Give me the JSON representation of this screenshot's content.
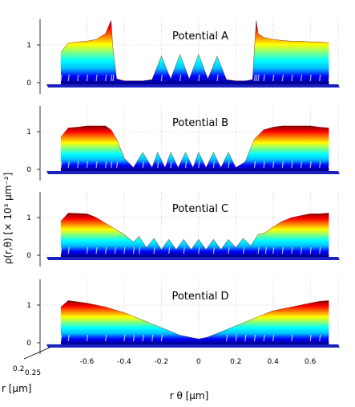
{
  "figure": {
    "ylabel": "ρ(r,θ) [× 10³ μm⁻²]",
    "xlabel": "r θ [μm]",
    "depth_label": "r [μm]",
    "depth_ticks": [
      "0.2",
      "0.25"
    ]
  },
  "colors": {
    "colormap": [
      "#000080",
      "#0000ff",
      "#00bfff",
      "#00ffff",
      "#80ff80",
      "#ffff00",
      "#ff8000",
      "#ff0000",
      "#800000"
    ],
    "grid": "#b0b0b0"
  },
  "chart_data": [
    {
      "type": "area",
      "title": "Potential A",
      "xlim": [
        -0.8,
        0.75
      ],
      "ylim": [
        0,
        1.7
      ],
      "yticks": [
        "0",
        "1"
      ],
      "xticks": [
        "-0.6",
        "-0.4",
        "-0.2",
        "0",
        "0.2",
        "0.4",
        "0.6"
      ],
      "x": [
        -0.74,
        -0.7,
        -0.65,
        -0.6,
        -0.55,
        -0.5,
        -0.47,
        -0.46,
        -0.44,
        -0.4,
        -0.35,
        -0.3,
        -0.25,
        -0.2,
        -0.15,
        -0.1,
        -0.05,
        0,
        0.05,
        0.1,
        0.15,
        0.2,
        0.25,
        0.29,
        0.3,
        0.31,
        0.32,
        0.35,
        0.4,
        0.45,
        0.5,
        0.55,
        0.6,
        0.65,
        0.7
      ],
      "y": [
        0.8,
        1.05,
        1.08,
        1.1,
        1.15,
        1.3,
        1.65,
        0.9,
        0.1,
        0.05,
        0.05,
        0.05,
        0.08,
        0.7,
        0.1,
        0.75,
        0.1,
        0.75,
        0.1,
        0.7,
        0.08,
        0.05,
        0.05,
        0.08,
        0.9,
        1.65,
        1.3,
        1.2,
        1.15,
        1.12,
        1.1,
        1.1,
        1.08,
        1.08,
        1.05
      ]
    },
    {
      "type": "area",
      "title": "Potential B",
      "xlim": [
        -0.8,
        0.75
      ],
      "ylim": [
        0,
        1.7
      ],
      "yticks": [
        "0",
        "1"
      ],
      "xticks": [
        "-0.6",
        "-0.4",
        "-0.2",
        "0",
        "0.2",
        "0.4",
        "0.6"
      ],
      "x": [
        -0.74,
        -0.7,
        -0.65,
        -0.6,
        -0.55,
        -0.5,
        -0.47,
        -0.44,
        -0.4,
        -0.35,
        -0.3,
        -0.25,
        -0.22,
        -0.18,
        -0.15,
        -0.11,
        -0.07,
        -0.03,
        0,
        0.04,
        0.08,
        0.12,
        0.16,
        0.2,
        0.25,
        0.3,
        0.35,
        0.4,
        0.45,
        0.5,
        0.55,
        0.6,
        0.65,
        0.7
      ],
      "y": [
        0.85,
        1.1,
        1.12,
        1.15,
        1.15,
        1.15,
        1.05,
        0.8,
        0.3,
        0.05,
        0.45,
        0.05,
        0.45,
        0.05,
        0.45,
        0.05,
        0.45,
        0.05,
        0.45,
        0.05,
        0.45,
        0.05,
        0.45,
        0.05,
        0.2,
        0.8,
        1.05,
        1.12,
        1.15,
        1.15,
        1.15,
        1.15,
        1.12,
        1.1
      ]
    },
    {
      "type": "area",
      "title": "Potential C",
      "xlim": [
        -0.8,
        0.75
      ],
      "ylim": [
        0,
        1.7
      ],
      "yticks": [
        "0",
        "1"
      ],
      "xticks": [
        "-0.6",
        "-0.4",
        "-0.2",
        "0",
        "0.2",
        "0.4",
        "0.6"
      ],
      "x": [
        -0.74,
        -0.7,
        -0.6,
        -0.55,
        -0.5,
        -0.45,
        -0.4,
        -0.35,
        -0.32,
        -0.28,
        -0.24,
        -0.2,
        -0.16,
        -0.12,
        -0.08,
        -0.04,
        0,
        0.04,
        0.08,
        0.12,
        0.16,
        0.2,
        0.24,
        0.28,
        0.32,
        0.36,
        0.4,
        0.45,
        0.5,
        0.55,
        0.6,
        0.65,
        0.7
      ],
      "y": [
        0.9,
        1.12,
        1.1,
        1.0,
        0.85,
        0.7,
        0.55,
        0.35,
        0.5,
        0.2,
        0.45,
        0.15,
        0.42,
        0.15,
        0.42,
        0.15,
        0.42,
        0.15,
        0.42,
        0.15,
        0.42,
        0.2,
        0.45,
        0.25,
        0.55,
        0.6,
        0.75,
        0.9,
        1.0,
        1.05,
        1.1,
        1.1,
        1.12
      ]
    },
    {
      "type": "area",
      "title": "Potential D",
      "xlim": [
        -0.8,
        0.75
      ],
      "ylim": [
        0,
        1.7
      ],
      "yticks": [
        "0",
        "1"
      ],
      "xticks": [
        "-0.6",
        "-0.4",
        "-0.2",
        "0",
        "0.2",
        "0.4",
        "0.6"
      ],
      "x": [
        -0.74,
        -0.7,
        -0.6,
        -0.5,
        -0.4,
        -0.35,
        -0.3,
        -0.25,
        -0.2,
        -0.15,
        -0.1,
        -0.05,
        0,
        0.05,
        0.1,
        0.15,
        0.2,
        0.25,
        0.3,
        0.35,
        0.4,
        0.5,
        0.6,
        0.65,
        0.7
      ],
      "y": [
        0.95,
        1.12,
        1.05,
        0.95,
        0.8,
        0.7,
        0.6,
        0.5,
        0.4,
        0.3,
        0.2,
        0.15,
        0.1,
        0.15,
        0.25,
        0.35,
        0.45,
        0.55,
        0.65,
        0.75,
        0.85,
        0.95,
        1.05,
        1.1,
        1.12
      ]
    }
  ]
}
